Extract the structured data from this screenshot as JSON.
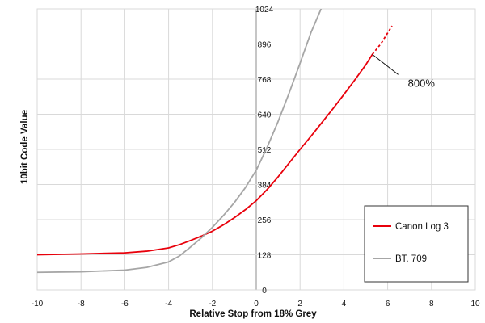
{
  "chart_data": {
    "type": "line",
    "title": "",
    "xlabel": "Relative Stop from 18% Grey",
    "ylabel": "10bit Code Value",
    "xlim": [
      -10,
      10
    ],
    "ylim": [
      0,
      1024
    ],
    "x_ticks": [
      "-10",
      "-8",
      "-6",
      "-4",
      "-2",
      "0",
      "2",
      "4",
      "6",
      "8",
      "10"
    ],
    "y_ticks": [
      "0",
      "128",
      "256",
      "384",
      "512",
      "640",
      "768",
      "896",
      "1024"
    ],
    "grid": true,
    "legend_position": "bottom-right",
    "series": [
      {
        "name": "Canon Log 3",
        "color": "#e8000b",
        "style": "solid",
        "x": [
          -10,
          -8,
          -6,
          -5,
          -4,
          -3.5,
          -3,
          -2.5,
          -2,
          -1.5,
          -1,
          -0.5,
          0,
          0.5,
          1,
          1.5,
          2,
          2.5,
          3,
          3.5,
          4,
          4.5,
          5,
          5.3
        ],
        "y": [
          128,
          131,
          135,
          141,
          153,
          165,
          180,
          196,
          214,
          237,
          263,
          292,
          325,
          366,
          412,
          462,
          512,
          560,
          610,
          660,
          712,
          765,
          820,
          858
        ]
      },
      {
        "name": "",
        "color": "#e8000b",
        "style": "dashed",
        "x": [
          5.3,
          5.7,
          6.2
        ],
        "y": [
          858,
          898,
          962
        ]
      },
      {
        "name": "BT. 709",
        "color": "#a6a6a6",
        "style": "solid",
        "x": [
          -10,
          -8,
          -6,
          -5,
          -4,
          -3.5,
          -3,
          -2.5,
          -2,
          -1.5,
          -1,
          -0.5,
          0,
          0.5,
          1,
          1.5,
          2,
          2.5,
          2.96
        ],
        "y": [
          64,
          66,
          72,
          82,
          102,
          124,
          156,
          190,
          228,
          271,
          318,
          372,
          436,
          520,
          614,
          717,
          826,
          938,
          1024
        ]
      }
    ],
    "annotations": [
      {
        "text": "800%",
        "x": 5.3,
        "y": 858
      }
    ]
  }
}
